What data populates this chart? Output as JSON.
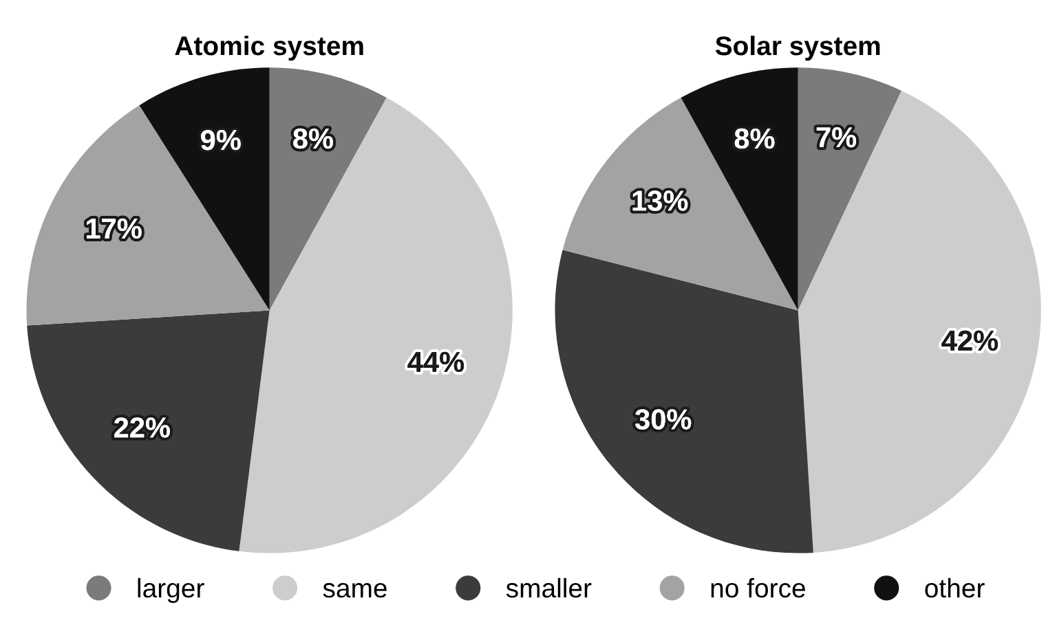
{
  "chart_data": [
    {
      "type": "pie",
      "title": "Atomic system",
      "categories": [
        "larger",
        "same",
        "smaller",
        "no force",
        "other"
      ],
      "values": [
        8,
        44,
        22,
        17,
        9
      ],
      "colors": [
        "#7b7b7b",
        "#cdcdcd",
        "#3b3b3b",
        "#a3a3a3",
        "#111111"
      ],
      "value_labels": [
        "8%",
        "44%",
        "22%",
        "17%",
        "9%"
      ],
      "legend": "bottom"
    },
    {
      "type": "pie",
      "title": "Solar system",
      "categories": [
        null,
        null,
        null,
        null,
        null
      ],
      "values": [
        7,
        42,
        30,
        13,
        8
      ],
      "colors": [
        "#7b7b7b",
        "#cdcdcd",
        "#3b3b3b",
        "#a3a3a3",
        "#111111"
      ],
      "value_labels": [
        "7%",
        "42%",
        "30%",
        "13%",
        "8%"
      ]
    }
  ]
}
